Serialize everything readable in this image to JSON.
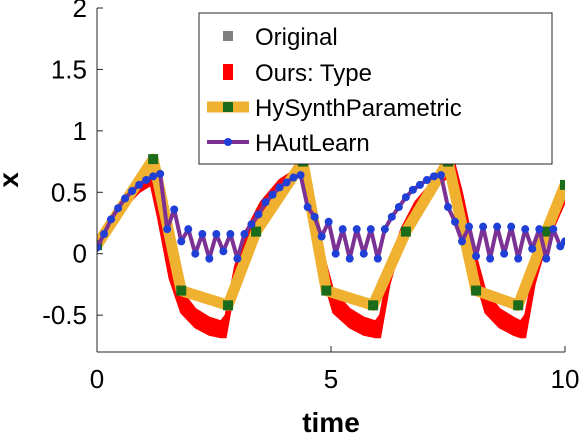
{
  "chart_data": {
    "type": "line",
    "xlabel": "time",
    "ylabel": "x",
    "xlim": [
      0,
      10
    ],
    "ylim": [
      -0.8,
      2
    ],
    "xticks": [
      0,
      5,
      10
    ],
    "xtick_labels": [
      "0",
      "5",
      "10"
    ],
    "yticks": [
      -0.5,
      0,
      0.5,
      1,
      1.5,
      2
    ],
    "ytick_labels": [
      "-0.5",
      "0",
      "0.5",
      "1",
      "1.5",
      "2"
    ],
    "grid": false,
    "legend_position": "top-right",
    "legend": [
      {
        "name": "Original",
        "color": "#808080",
        "style": "square-marker"
      },
      {
        "name": "Ours: Type",
        "color": "#ff0000",
        "style": "thick-line"
      },
      {
        "name": "HySynthParametric",
        "color": "#f0b030",
        "marker_color": "#1a6b1a",
        "style": "line-square"
      },
      {
        "name": "HAutLearn",
        "color": "#7b3294",
        "marker_color": "#1f3fd6",
        "style": "line-circle"
      }
    ],
    "series": [
      {
        "name": "Ours: Type",
        "color": "#ff0000",
        "upper": [
          [
            0,
            0.08
          ],
          [
            0.3,
            0.3
          ],
          [
            0.6,
            0.45
          ],
          [
            0.9,
            0.55
          ],
          [
            1.15,
            0.6
          ],
          [
            1.3,
            0.45
          ],
          [
            1.55,
            0.0
          ],
          [
            1.8,
            -0.3
          ],
          [
            2.1,
            -0.45
          ],
          [
            2.4,
            -0.52
          ],
          [
            2.65,
            -0.55
          ],
          [
            2.75,
            -0.5
          ],
          [
            2.95,
            -0.1
          ],
          [
            3.2,
            0.2
          ],
          [
            3.5,
            0.42
          ],
          [
            3.9,
            0.6
          ],
          [
            4.3,
            0.7
          ],
          [
            4.42,
            0.72
          ],
          [
            4.55,
            0.5
          ],
          [
            4.8,
            0.05
          ],
          [
            5.05,
            -0.3
          ],
          [
            5.4,
            -0.45
          ],
          [
            5.7,
            -0.52
          ],
          [
            5.95,
            -0.55
          ],
          [
            6.05,
            -0.5
          ],
          [
            6.25,
            -0.1
          ],
          [
            6.5,
            0.2
          ],
          [
            6.8,
            0.42
          ],
          [
            7.2,
            0.6
          ],
          [
            7.55,
            0.7
          ],
          [
            7.65,
            0.72
          ],
          [
            7.8,
            0.5
          ],
          [
            8.05,
            0.05
          ],
          [
            8.3,
            -0.3
          ],
          [
            8.6,
            -0.45
          ],
          [
            8.9,
            -0.52
          ],
          [
            9.05,
            -0.55
          ],
          [
            9.15,
            -0.5
          ],
          [
            9.35,
            -0.1
          ],
          [
            9.6,
            0.2
          ],
          [
            10,
            0.5
          ]
        ],
        "lower": [
          [
            0,
            0.02
          ],
          [
            0.3,
            0.22
          ],
          [
            0.6,
            0.38
          ],
          [
            0.9,
            0.5
          ],
          [
            1.15,
            0.56
          ],
          [
            1.3,
            0.3
          ],
          [
            1.55,
            -0.2
          ],
          [
            1.8,
            -0.48
          ],
          [
            2.1,
            -0.6
          ],
          [
            2.4,
            -0.66
          ],
          [
            2.65,
            -0.68
          ],
          [
            2.75,
            -0.68
          ],
          [
            2.95,
            -0.25
          ],
          [
            3.2,
            0.08
          ],
          [
            3.5,
            0.33
          ],
          [
            3.9,
            0.53
          ],
          [
            4.3,
            0.64
          ],
          [
            4.42,
            0.66
          ],
          [
            4.55,
            0.3
          ],
          [
            4.8,
            -0.15
          ],
          [
            5.05,
            -0.48
          ],
          [
            5.4,
            -0.6
          ],
          [
            5.7,
            -0.66
          ],
          [
            5.95,
            -0.68
          ],
          [
            6.05,
            -0.68
          ],
          [
            6.25,
            -0.25
          ],
          [
            6.5,
            0.08
          ],
          [
            6.8,
            0.33
          ],
          [
            7.2,
            0.53
          ],
          [
            7.55,
            0.64
          ],
          [
            7.65,
            0.66
          ],
          [
            7.8,
            0.3
          ],
          [
            8.05,
            -0.15
          ],
          [
            8.3,
            -0.48
          ],
          [
            8.6,
            -0.6
          ],
          [
            8.9,
            -0.66
          ],
          [
            9.05,
            -0.68
          ],
          [
            9.15,
            -0.68
          ],
          [
            9.35,
            -0.25
          ],
          [
            9.6,
            0.08
          ],
          [
            10,
            0.42
          ]
        ]
      },
      {
        "name": "HySynthParametric",
        "color": "#f0b030",
        "marker_color": "#1a6b1a",
        "x": [
          0,
          1.2,
          1.8,
          2.8,
          3.4,
          4.4,
          4.9,
          5.9,
          6.6,
          7.5,
          8.1,
          9.0,
          9.6,
          10
        ],
        "y": [
          0.07,
          0.77,
          -0.3,
          -0.42,
          0.18,
          0.75,
          -0.3,
          -0.42,
          0.18,
          0.75,
          -0.3,
          -0.42,
          0.18,
          0.56
        ],
        "markers_x": [
          0,
          1.2,
          1.8,
          2.8,
          3.4,
          4.4,
          4.9,
          5.9,
          6.6,
          7.5,
          8.1,
          9.0,
          9.6,
          10
        ],
        "markers_y": [
          0.07,
          0.77,
          -0.3,
          -0.42,
          0.18,
          0.75,
          -0.3,
          -0.42,
          0.18,
          0.75,
          -0.3,
          -0.42,
          0.18,
          0.56
        ]
      },
      {
        "name": "HAutLearn",
        "color": "#7b3294",
        "marker_color": "#1f3fd6",
        "x": [
          0,
          0.15,
          0.3,
          0.45,
          0.6,
          0.75,
          0.9,
          1.05,
          1.2,
          1.35,
          1.5,
          1.65,
          1.8,
          1.95,
          2.1,
          2.25,
          2.4,
          2.55,
          2.7,
          2.85,
          3.0,
          3.15,
          3.3,
          3.45,
          3.6,
          3.75,
          3.9,
          4.05,
          4.2,
          4.35,
          4.5,
          4.65,
          4.8,
          4.95,
          5.1,
          5.25,
          5.4,
          5.55,
          5.7,
          5.85,
          6.0,
          6.15,
          6.3,
          6.45,
          6.6,
          6.75,
          6.9,
          7.05,
          7.2,
          7.35,
          7.5,
          7.65,
          7.8,
          7.95,
          8.1,
          8.25,
          8.4,
          8.55,
          8.7,
          8.85,
          9.0,
          9.15,
          9.3,
          9.45,
          9.6,
          9.75,
          9.9,
          10
        ],
        "y": [
          0.05,
          0.16,
          0.28,
          0.37,
          0.45,
          0.51,
          0.56,
          0.6,
          0.63,
          0.65,
          0.2,
          0.36,
          0.1,
          0.2,
          0.0,
          0.16,
          -0.04,
          0.16,
          0.02,
          0.16,
          -0.04,
          0.16,
          0.24,
          0.32,
          0.42,
          0.48,
          0.54,
          0.58,
          0.62,
          0.64,
          0.38,
          0.3,
          0.14,
          0.26,
          0.0,
          0.2,
          -0.04,
          0.2,
          0.0,
          0.2,
          -0.04,
          0.2,
          0.3,
          0.38,
          0.46,
          0.52,
          0.56,
          0.6,
          0.63,
          0.64,
          0.38,
          0.26,
          0.1,
          0.22,
          -0.02,
          0.22,
          -0.04,
          0.22,
          0.0,
          0.22,
          -0.04,
          0.2,
          0.04,
          0.2,
          -0.04,
          0.2,
          0.06,
          0.1
        ]
      }
    ]
  }
}
